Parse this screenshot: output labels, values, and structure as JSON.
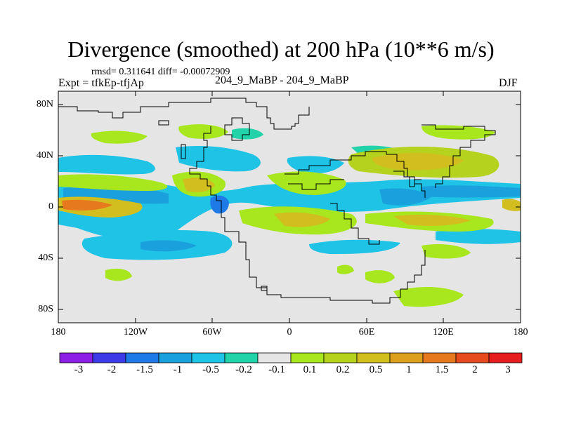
{
  "header": {
    "title": "Divergence (smoothed) at 200 hPa (10**6 m/s)",
    "stats": "rmsd= 0.311641 diff= -0.00072909",
    "case_line": "204_9_MaBP - 204_9_MaBP",
    "experiment": "Expt = tfkEp-tfjAp",
    "season": "DJF"
  },
  "map": {
    "lat_labels": [
      "80N",
      "40N",
      "0",
      "40S",
      "80S"
    ],
    "lon_labels": [
      "180",
      "120W",
      "60W",
      "0",
      "60E",
      "120E",
      "180"
    ],
    "background_color": "#e5e5e5"
  },
  "colorbar": {
    "labels": [
      "-3",
      "-2",
      "-1.5",
      "-1",
      "-0.5",
      "-0.2",
      "-0.1",
      "0.1",
      "0.2",
      "0.5",
      "1",
      "1.5",
      "2",
      "3"
    ],
    "colors": [
      "#8c1ee6",
      "#3c3ce6",
      "#1e7ae6",
      "#1aa0dc",
      "#1ec3e6",
      "#22d2a8",
      "#e5e5e5",
      "#a8e61e",
      "#b4d21e",
      "#d2be1e",
      "#dca01e",
      "#e6781e",
      "#e64b1e",
      "#e61e1e"
    ]
  }
}
